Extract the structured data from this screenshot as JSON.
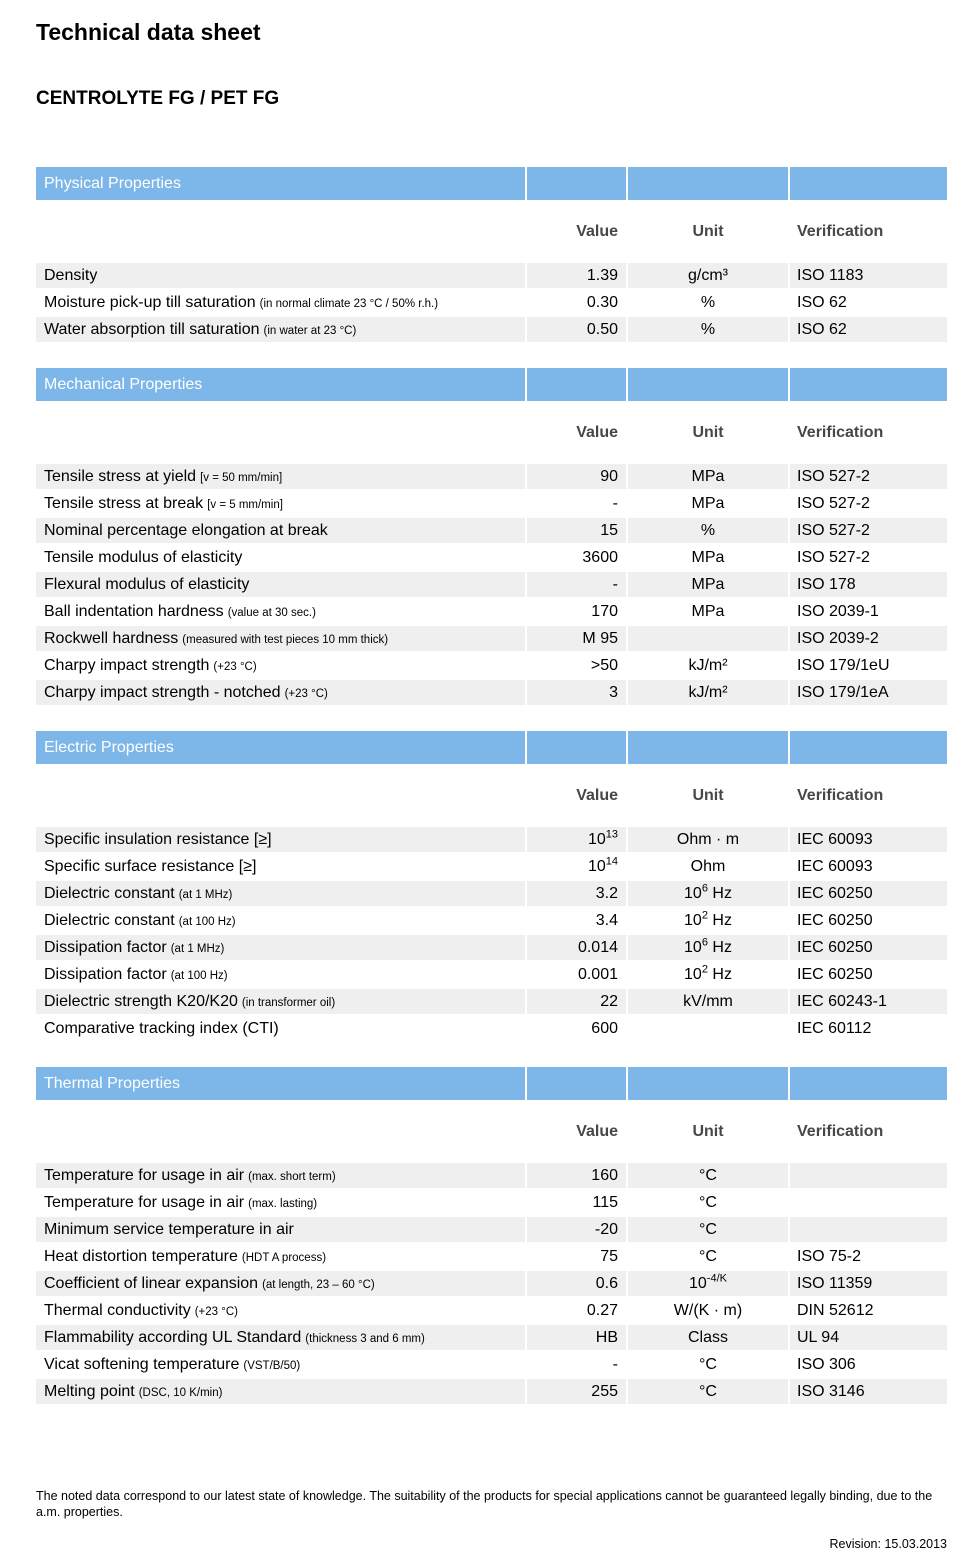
{
  "title": "Technical data sheet",
  "product": "CENTROLYTE FG / PET FG",
  "columns": {
    "value": "Value",
    "unit": "Unit",
    "verification": "Verification"
  },
  "colors": {
    "header_blue": "#7DB6E8",
    "row_stripe": "#EFEFEF"
  },
  "sections": [
    {
      "name": "Physical Properties",
      "rows": [
        {
          "label": "Density",
          "note": "",
          "value": "1.39",
          "unit": "g/cm³",
          "verification": "ISO 1183"
        },
        {
          "label": "Moisture pick-up till saturation",
          "note": "(in normal climate 23 °C / 50% r.h.)",
          "value": "0.30",
          "unit": "%",
          "verification": "ISO 62"
        },
        {
          "label": "Water absorption till saturation",
          "note": "(in water at 23 °C)",
          "value": "0.50",
          "unit": "%",
          "verification": "ISO 62"
        }
      ]
    },
    {
      "name": "Mechanical Properties",
      "rows": [
        {
          "label": "Tensile stress at yield",
          "note": "[v = 50 mm/min]",
          "value": "90",
          "unit": "MPa",
          "verification": "ISO 527-2"
        },
        {
          "label": "Tensile stress at break",
          "note": "[v = 5 mm/min]",
          "value": "-",
          "unit": "MPa",
          "verification": "ISO 527-2"
        },
        {
          "label": "Nominal percentage elongation at break",
          "note": "",
          "value": "15",
          "unit": "%",
          "verification": "ISO 527-2"
        },
        {
          "label": "Tensile modulus of elasticity",
          "note": "",
          "value": "3600",
          "unit": "MPa",
          "verification": "ISO 527-2"
        },
        {
          "label": "Flexural modulus of elasticity",
          "note": "",
          "value": "-",
          "unit": "MPa",
          "verification": "ISO 178"
        },
        {
          "label": "Ball indentation hardness",
          "note": "(value at 30 sec.)",
          "value": "170",
          "unit": "MPa",
          "verification": "ISO 2039-1"
        },
        {
          "label": "Rockwell hardness",
          "note": "(measured with test pieces 10 mm thick)",
          "value": "M 95",
          "unit": "",
          "verification": "ISO 2039-2"
        },
        {
          "label": "Charpy impact strength",
          "note": "(+23 °C)",
          "value": ">50",
          "unit": "kJ/m²",
          "verification": "ISO 179/1eU"
        },
        {
          "label": "Charpy impact strength - notched",
          "note": "(+23 °C)",
          "value": "3",
          "unit": "kJ/m²",
          "verification": "ISO 179/1eA"
        }
      ]
    },
    {
      "name": "Electric Properties",
      "rows": [
        {
          "label": "Specific insulation resistance [≥]",
          "note": "",
          "value": "10^{13}",
          "unit": "Ohm · m",
          "verification": "IEC 60093"
        },
        {
          "label": "Specific surface resistance [≥]",
          "note": "",
          "value": "10^{14}",
          "unit": "Ohm",
          "verification": "IEC 60093"
        },
        {
          "label": "Dielectric constant",
          "note": "(at 1 MHz)",
          "value": "3.2",
          "unit": "10^{6} Hz",
          "verification": "IEC 60250"
        },
        {
          "label": "Dielectric constant",
          "note": "(at 100 Hz)",
          "value": "3.4",
          "unit": "10^{2} Hz",
          "verification": "IEC 60250"
        },
        {
          "label": "Dissipation factor",
          "note": "(at 1 MHz)",
          "value": "0.014",
          "unit": "10^{6} Hz",
          "verification": "IEC 60250"
        },
        {
          "label": "Dissipation factor",
          "note": "(at 100 Hz)",
          "value": "0.001",
          "unit": "10^{2} Hz",
          "verification": "IEC 60250"
        },
        {
          "label": "Dielectric strength K20/K20",
          "note": "(in transformer oil)",
          "value": "22",
          "unit": "kV/mm",
          "verification": "IEC 60243-1"
        },
        {
          "label": "Comparative tracking index (CTI)",
          "note": "",
          "value": "600",
          "unit": "",
          "verification": "IEC 60112"
        }
      ]
    },
    {
      "name": "Thermal Properties",
      "rows": [
        {
          "label": "Temperature for usage in air",
          "note": "(max. short term)",
          "value": "160",
          "unit": "°C",
          "verification": ""
        },
        {
          "label": "Temperature for usage in air",
          "note": "(max. lasting)",
          "value": "115",
          "unit": "°C",
          "verification": ""
        },
        {
          "label": "Minimum service temperature in air",
          "note": "",
          "value": "-20",
          "unit": "°C",
          "verification": ""
        },
        {
          "label": "Heat distortion temperature",
          "note": "(HDT A process)",
          "value": "75",
          "unit": "°C",
          "verification": "ISO 75-2"
        },
        {
          "label": "Coefficient of linear expansion",
          "note": "(at length, 23 – 60 °C)",
          "value": "0.6",
          "unit": "10^{-4/K}",
          "verification": "ISO 11359"
        },
        {
          "label": "Thermal conductivity",
          "note": "(+23 °C)",
          "value": "0.27",
          "unit": "W/(K · m)",
          "verification": "DIN 52612"
        },
        {
          "label": "Flammability according UL Standard",
          "note": "(thickness 3 and 6 mm)",
          "value": "HB",
          "unit": "Class",
          "verification": "UL 94"
        },
        {
          "label": "Vicat softening temperature",
          "note": "(VST/B/50)",
          "value": "-",
          "unit": "°C",
          "verification": "ISO 306"
        },
        {
          "label": "Melting point",
          "note": "(DSC, 10 K/min)",
          "value": "255",
          "unit": "°C",
          "verification": "ISO 3146"
        }
      ]
    }
  ],
  "footer": {
    "note": "The noted data correspond to our latest state of knowledge. The suitability of the products for special applications cannot be guaranteed legally binding, due to the a.m. properties.",
    "revision_label": "Revision:",
    "revision_date": "15.03.2013"
  }
}
